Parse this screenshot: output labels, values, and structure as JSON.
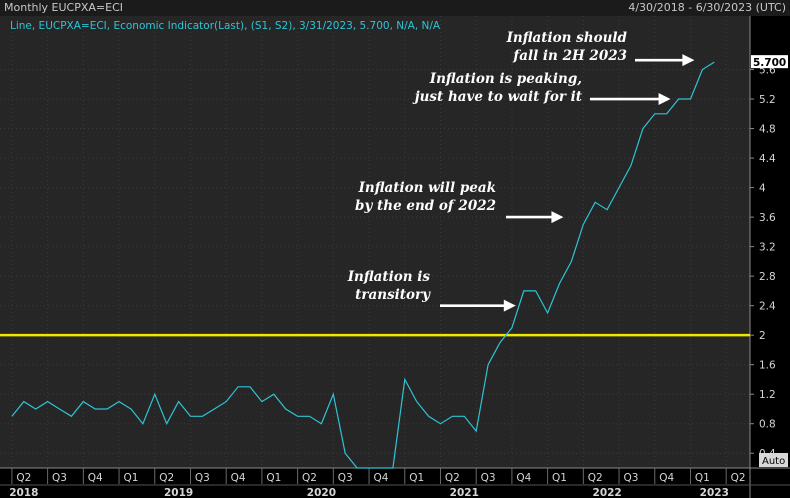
{
  "header": {
    "title": "Monthly EUCPXA=ECI",
    "date_range": "4/30/2018 - 6/30/2023 (UTC)"
  },
  "legend": {
    "text": "Line, EUCPXA=ECI, Economic Indicator(Last), (S1, S2), 3/31/2023, 5.700, N/A, N/A"
  },
  "last_value_label": "5.700",
  "auto_label": "Auto",
  "colors": {
    "background": "#000000",
    "plot": "#262626",
    "line": "#2ec4d6",
    "threshold": "#f0e800",
    "annotation": "#ffffff"
  },
  "chart_data": {
    "type": "line",
    "title": "Monthly EUCPXA=ECI",
    "series": [
      {
        "name": "EUCPXA=ECI",
        "x": [
          "2018-04",
          "2018-05",
          "2018-06",
          "2018-07",
          "2018-08",
          "2018-09",
          "2018-10",
          "2018-11",
          "2018-12",
          "2019-01",
          "2019-02",
          "2019-03",
          "2019-04",
          "2019-05",
          "2019-06",
          "2019-07",
          "2019-08",
          "2019-09",
          "2019-10",
          "2019-11",
          "2019-12",
          "2020-01",
          "2020-02",
          "2020-03",
          "2020-04",
          "2020-05",
          "2020-06",
          "2020-07",
          "2020-08",
          "2020-09",
          "2020-10",
          "2020-11",
          "2020-12",
          "2021-01",
          "2021-02",
          "2021-03",
          "2021-04",
          "2021-05",
          "2021-06",
          "2021-07",
          "2021-08",
          "2021-09",
          "2021-10",
          "2021-11",
          "2021-12",
          "2022-01",
          "2022-02",
          "2022-03",
          "2022-04",
          "2022-05",
          "2022-06",
          "2022-07",
          "2022-08",
          "2022-09",
          "2022-10",
          "2022-11",
          "2022-12",
          "2023-01",
          "2023-02",
          "2023-03"
        ],
        "values": [
          0.9,
          1.1,
          1.0,
          1.1,
          1.0,
          0.9,
          1.1,
          1.0,
          1.0,
          1.1,
          1.0,
          0.8,
          1.2,
          0.8,
          1.1,
          0.9,
          0.9,
          1.0,
          1.1,
          1.3,
          1.3,
          1.1,
          1.2,
          1.0,
          0.9,
          0.9,
          0.8,
          1.2,
          0.4,
          0.2,
          0.2,
          0.2,
          0.2,
          1.4,
          1.1,
          0.9,
          0.8,
          0.9,
          0.9,
          0.7,
          1.6,
          1.9,
          2.1,
          2.6,
          2.6,
          2.3,
          2.7,
          3.0,
          3.5,
          3.8,
          3.7,
          4.0,
          4.3,
          4.8,
          5.0,
          5.0,
          5.2,
          5.2,
          5.6,
          5.7
        ]
      }
    ],
    "reference_line": {
      "value": 2.0,
      "color": "#f0e800"
    },
    "ylim": [
      0.2,
      6.0
    ],
    "yticks": [
      0.4,
      0.8,
      1.2,
      1.6,
      2,
      2.4,
      2.8,
      3.2,
      3.6,
      4,
      4.4,
      4.8,
      5.2,
      5.6
    ],
    "xlim": [
      "2018-03",
      "2023-06"
    ],
    "quarter_ticks": [
      {
        "label": "Q2",
        "x": "2018-05"
      },
      {
        "label": "Q3",
        "x": "2018-08"
      },
      {
        "label": "Q4",
        "x": "2018-11"
      },
      {
        "label": "Q1",
        "x": "2019-02"
      },
      {
        "label": "Q2",
        "x": "2019-05"
      },
      {
        "label": "Q3",
        "x": "2019-08"
      },
      {
        "label": "Q4",
        "x": "2019-11"
      },
      {
        "label": "Q1",
        "x": "2020-02"
      },
      {
        "label": "Q2",
        "x": "2020-05"
      },
      {
        "label": "Q3",
        "x": "2020-08"
      },
      {
        "label": "Q4",
        "x": "2020-11"
      },
      {
        "label": "Q1",
        "x": "2021-02"
      },
      {
        "label": "Q2",
        "x": "2021-05"
      },
      {
        "label": "Q3",
        "x": "2021-08"
      },
      {
        "label": "Q4",
        "x": "2021-11"
      },
      {
        "label": "Q1",
        "x": "2022-02"
      },
      {
        "label": "Q2",
        "x": "2022-05"
      },
      {
        "label": "Q3",
        "x": "2022-08"
      },
      {
        "label": "Q4",
        "x": "2022-11"
      },
      {
        "label": "Q1",
        "x": "2023-02"
      },
      {
        "label": "Q2",
        "x": "2023-05"
      }
    ],
    "year_labels": [
      {
        "label": "2018",
        "x": "2018-05"
      },
      {
        "label": "2019",
        "x": "2019-06"
      },
      {
        "label": "2020",
        "x": "2020-06"
      },
      {
        "label": "2021",
        "x": "2021-06"
      },
      {
        "label": "2022",
        "x": "2022-06"
      },
      {
        "label": "2023",
        "x": "2023-03"
      }
    ],
    "annotations": [
      {
        "lines": [
          "Inflation is",
          "transitory"
        ],
        "x": "2021-11",
        "y": 2.4
      },
      {
        "lines": [
          "Inflation will peak",
          "by the end of 2022"
        ],
        "x": "2022-03",
        "y": 3.6
      },
      {
        "lines": [
          "Inflation is peaking,",
          "just have to wait for it"
        ],
        "x": "2022-12",
        "y": 5.2
      },
      {
        "lines": [
          "Inflation should",
          "fall in 2H 2023"
        ],
        "x": "2023-02",
        "y": 5.7
      }
    ],
    "grid": true,
    "legend_position": "top-left"
  }
}
